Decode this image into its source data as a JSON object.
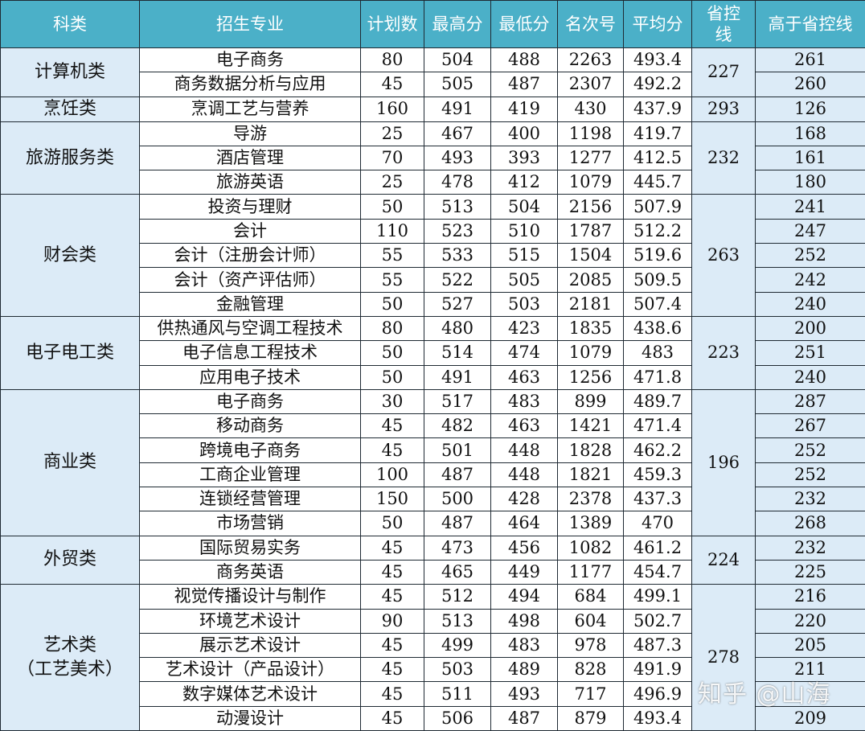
{
  "headers": [
    "科类",
    "招生专业",
    "计划数",
    "最高分",
    "最低分",
    "名次号",
    "平均分",
    "省控\n线",
    "高于省控线"
  ],
  "groups": [
    {
      "category": "计算机类",
      "control_line": "227",
      "rows": [
        {
          "major": "电子商务",
          "plan": "80",
          "max": "504",
          "min": "488",
          "rank": "2263",
          "avg": "493.4",
          "above": "261"
        },
        {
          "major": "商务数据分析与应用",
          "plan": "45",
          "max": "505",
          "min": "487",
          "rank": "2307",
          "avg": "492.2",
          "above": "260"
        }
      ]
    },
    {
      "category": "烹饪类",
      "control_line": "293",
      "rows": [
        {
          "major": "烹调工艺与营养",
          "plan": "160",
          "max": "491",
          "min": "419",
          "rank": "430",
          "avg": "437.9",
          "above": "126"
        }
      ]
    },
    {
      "category": "旅游服务类",
      "control_line": "232",
      "rows": [
        {
          "major": "导游",
          "plan": "25",
          "max": "467",
          "min": "400",
          "rank": "1198",
          "avg": "419.7",
          "above": "168"
        },
        {
          "major": "酒店管理",
          "plan": "70",
          "max": "493",
          "min": "393",
          "rank": "1277",
          "avg": "412.5",
          "above": "161"
        },
        {
          "major": "旅游英语",
          "plan": "25",
          "max": "478",
          "min": "412",
          "rank": "1079",
          "avg": "445.7",
          "above": "180"
        }
      ]
    },
    {
      "category": "财会类",
      "control_line": "263",
      "rows": [
        {
          "major": "投资与理财",
          "plan": "50",
          "max": "513",
          "min": "504",
          "rank": "2156",
          "avg": "507.9",
          "above": "241"
        },
        {
          "major": "会计",
          "plan": "110",
          "max": "523",
          "min": "510",
          "rank": "1787",
          "avg": "512.2",
          "above": "247"
        },
        {
          "major": "会计（注册会计师）",
          "plan": "55",
          "max": "533",
          "min": "515",
          "rank": "1504",
          "avg": "519.6",
          "above": "252"
        },
        {
          "major": "会计（资产评估师）",
          "plan": "55",
          "max": "522",
          "min": "505",
          "rank": "2085",
          "avg": "509.5",
          "above": "242"
        },
        {
          "major": "金融管理",
          "plan": "50",
          "max": "527",
          "min": "503",
          "rank": "2181",
          "avg": "507.4",
          "above": "240"
        }
      ]
    },
    {
      "category": "电子电工类",
      "control_line": "223",
      "rows": [
        {
          "major": "供热通风与空调工程技术",
          "plan": "80",
          "max": "480",
          "min": "423",
          "rank": "1835",
          "avg": "438.6",
          "above": "200"
        },
        {
          "major": "电子信息工程技术",
          "plan": "50",
          "max": "514",
          "min": "474",
          "rank": "1079",
          "avg": "483",
          "above": "251"
        },
        {
          "major": "应用电子技术",
          "plan": "50",
          "max": "491",
          "min": "463",
          "rank": "1256",
          "avg": "471.8",
          "above": "240"
        }
      ]
    },
    {
      "category": "商业类",
      "control_line": "196",
      "rows": [
        {
          "major": "电子商务",
          "plan": "30",
          "max": "517",
          "min": "483",
          "rank": "899",
          "avg": "489.7",
          "above": "287"
        },
        {
          "major": "移动商务",
          "plan": "45",
          "max": "482",
          "min": "463",
          "rank": "1421",
          "avg": "471.4",
          "above": "267"
        },
        {
          "major": "跨境电子商务",
          "plan": "45",
          "max": "501",
          "min": "448",
          "rank": "1828",
          "avg": "462.2",
          "above": "252"
        },
        {
          "major": "工商企业管理",
          "plan": "100",
          "max": "487",
          "min": "448",
          "rank": "1821",
          "avg": "459.3",
          "above": "252"
        },
        {
          "major": "连锁经营管理",
          "plan": "150",
          "max": "500",
          "min": "428",
          "rank": "2378",
          "avg": "437.3",
          "above": "232"
        },
        {
          "major": "市场营销",
          "plan": "50",
          "max": "487",
          "min": "464",
          "rank": "1389",
          "avg": "470",
          "above": "268"
        }
      ]
    },
    {
      "category": "外贸类",
      "control_line": "224",
      "rows": [
        {
          "major": "国际贸易实务",
          "plan": "45",
          "max": "473",
          "min": "456",
          "rank": "1082",
          "avg": "461.2",
          "above": "232"
        },
        {
          "major": "商务英语",
          "plan": "45",
          "max": "465",
          "min": "449",
          "rank": "1177",
          "avg": "454.7",
          "above": "225"
        }
      ]
    },
    {
      "category": "艺术类\n（工艺美术）",
      "control_line": "278",
      "rows": [
        {
          "major": "视觉传播设计与制作",
          "plan": "45",
          "max": "512",
          "min": "494",
          "rank": "684",
          "avg": "499.1",
          "above": "216"
        },
        {
          "major": "环境艺术设计",
          "plan": "90",
          "max": "513",
          "min": "498",
          "rank": "604",
          "avg": "502.7",
          "above": "220"
        },
        {
          "major": "展示艺术设计",
          "plan": "45",
          "max": "499",
          "min": "483",
          "rank": "978",
          "avg": "487.3",
          "above": "205"
        },
        {
          "major": "艺术设计（产品设计）",
          "plan": "45",
          "max": "503",
          "min": "489",
          "rank": "828",
          "avg": "491.9",
          "above": "211"
        },
        {
          "major": "数字媒体艺术设计",
          "plan": "45",
          "max": "511",
          "min": "493",
          "rank": "717",
          "avg": "496.9",
          "above": ""
        },
        {
          "major": "动漫设计",
          "plan": "45",
          "max": "506",
          "min": "487",
          "rank": "879",
          "avg": "493.4",
          "above": "209"
        }
      ]
    }
  ],
  "watermark": "知乎 @山海"
}
